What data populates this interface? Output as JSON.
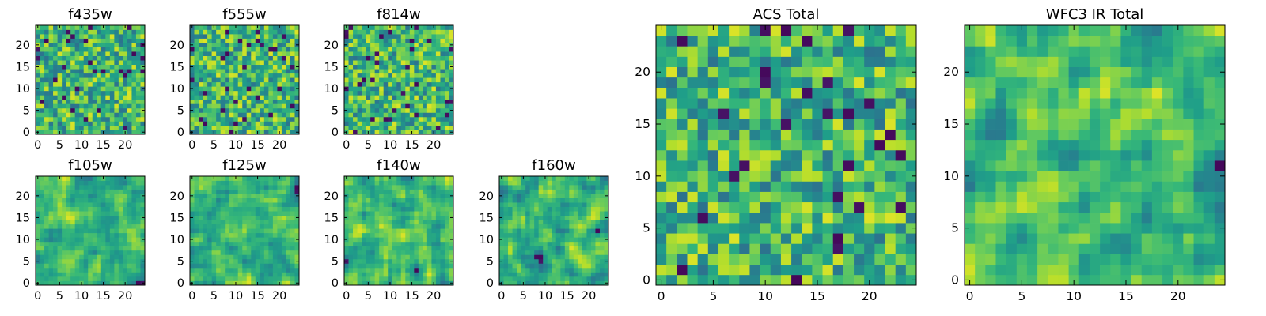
{
  "figure": {
    "colormap": "viridis",
    "colors": {
      "low": "#440154",
      "mid": "#21918c",
      "high": "#fde725"
    }
  },
  "chart_data": [
    {
      "type": "heatmap",
      "title": "f435w",
      "grid": [
        25,
        25
      ],
      "xlim": [
        0,
        24
      ],
      "ylim": [
        0,
        24
      ],
      "xticks": [
        0,
        5,
        10,
        15,
        20
      ],
      "yticks": [
        0,
        5,
        10,
        15,
        20
      ],
      "seed": 11,
      "texture": "noisy"
    },
    {
      "type": "heatmap",
      "title": "f555w",
      "grid": [
        25,
        25
      ],
      "xlim": [
        0,
        24
      ],
      "ylim": [
        0,
        24
      ],
      "xticks": [
        0,
        5,
        10,
        15,
        20
      ],
      "yticks": [
        0,
        5,
        10,
        15,
        20
      ],
      "seed": 23,
      "texture": "noisy"
    },
    {
      "type": "heatmap",
      "title": "f814w",
      "grid": [
        25,
        25
      ],
      "xlim": [
        0,
        24
      ],
      "ylim": [
        0,
        24
      ],
      "xticks": [
        0,
        5,
        10,
        15,
        20
      ],
      "yticks": [
        0,
        5,
        10,
        15,
        20
      ],
      "seed": 37,
      "texture": "noisy"
    },
    {
      "type": "heatmap",
      "title": "f105w",
      "grid": [
        25,
        25
      ],
      "xlim": [
        0,
        24
      ],
      "ylim": [
        0,
        24
      ],
      "xticks": [
        0,
        5,
        10,
        15,
        20
      ],
      "yticks": [
        0,
        5,
        10,
        15,
        20
      ],
      "seed": 41,
      "texture": "smooth"
    },
    {
      "type": "heatmap",
      "title": "f125w",
      "grid": [
        25,
        25
      ],
      "xlim": [
        0,
        24
      ],
      "ylim": [
        0,
        24
      ],
      "xticks": [
        0,
        5,
        10,
        15,
        20
      ],
      "yticks": [
        0,
        5,
        10,
        15,
        20
      ],
      "seed": 53,
      "texture": "smooth"
    },
    {
      "type": "heatmap",
      "title": "f140w",
      "grid": [
        25,
        25
      ],
      "xlim": [
        0,
        24
      ],
      "ylim": [
        0,
        24
      ],
      "xticks": [
        0,
        5,
        10,
        15,
        20
      ],
      "yticks": [
        0,
        5,
        10,
        15,
        20
      ],
      "seed": 67,
      "texture": "smooth"
    },
    {
      "type": "heatmap",
      "title": "f160w",
      "grid": [
        25,
        25
      ],
      "xlim": [
        0,
        24
      ],
      "ylim": [
        0,
        24
      ],
      "xticks": [
        0,
        5,
        10,
        15,
        20
      ],
      "yticks": [
        0,
        5,
        10,
        15,
        20
      ],
      "seed": 79,
      "texture": "smooth"
    },
    {
      "type": "heatmap",
      "title": "ACS Total",
      "grid": [
        25,
        25
      ],
      "xlim": [
        0,
        24
      ],
      "ylim": [
        0,
        24
      ],
      "xticks": [
        0,
        5,
        10,
        15,
        20
      ],
      "yticks": [
        0,
        5,
        10,
        15,
        20
      ],
      "seed": 97,
      "texture": "noisy"
    },
    {
      "type": "heatmap",
      "title": "WFC3 IR Total",
      "grid": [
        25,
        25
      ],
      "xlim": [
        0,
        24
      ],
      "ylim": [
        0,
        24
      ],
      "xticks": [
        0,
        5,
        10,
        15,
        20
      ],
      "yticks": [
        0,
        5,
        10,
        15,
        20
      ],
      "seed": 113,
      "texture": "smooth"
    }
  ]
}
